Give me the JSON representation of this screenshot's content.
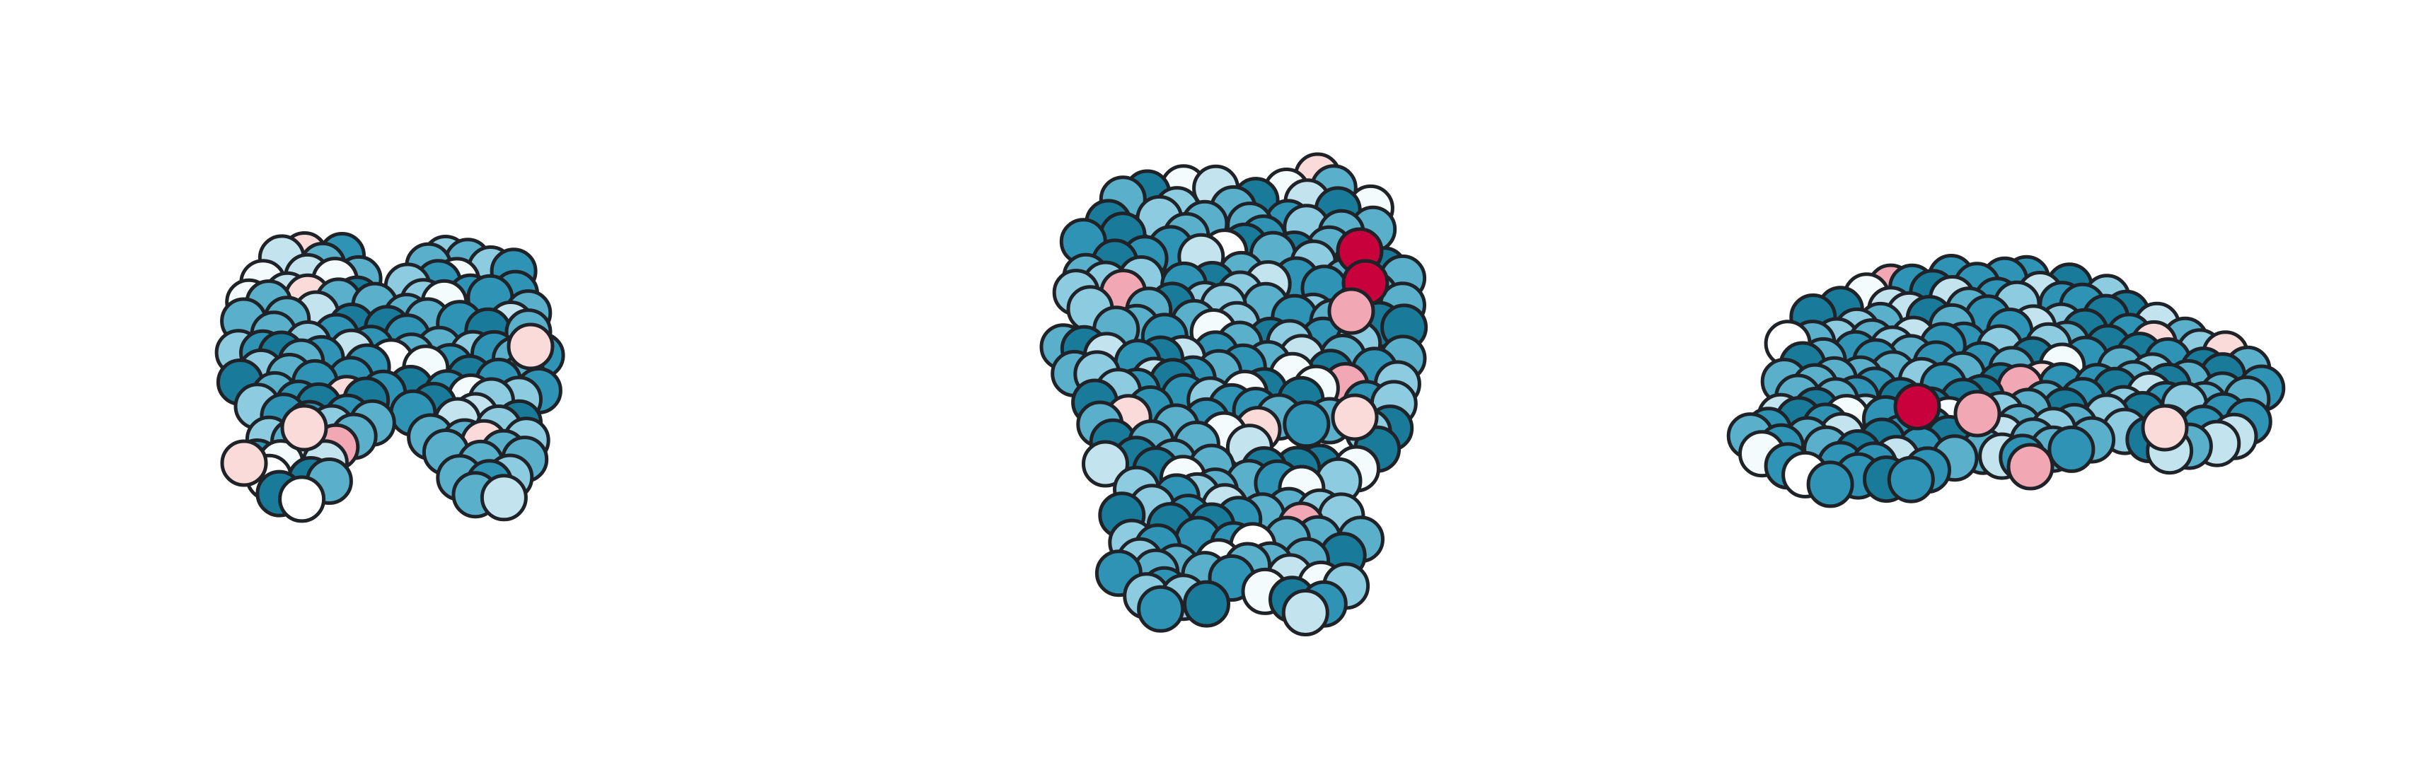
{
  "figure": {
    "background": "#ffffff",
    "node_outline_color": "#1f2328",
    "colormap": [
      "#1a7a99",
      "#2e93b5",
      "#5aafcb",
      "#8ccbe0",
      "#c3e4ef",
      "#f4fbfd",
      "#ffffff",
      "#fbdada",
      "#f2a8b4",
      "#c8003c"
    ],
    "views": [
      {
        "name": "coronal-view",
        "label": ""
      },
      {
        "name": "axial-view",
        "label": ""
      },
      {
        "name": "sagittal-view",
        "label": ""
      }
    ]
  }
}
